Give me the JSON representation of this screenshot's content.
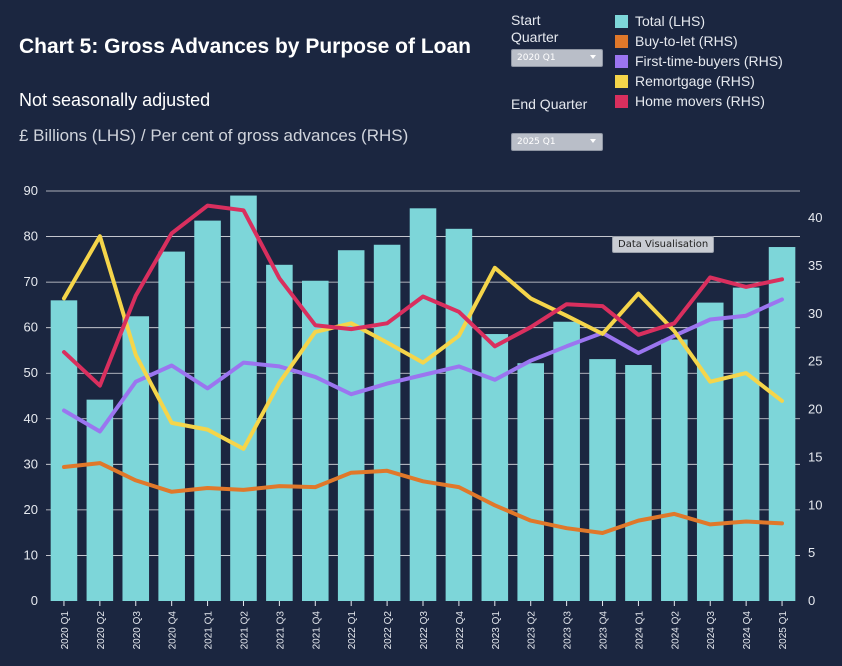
{
  "title": "Chart 5: Gross Advances by Purpose of Loan",
  "subtitle": "Not seasonally adjusted",
  "units": "£ Billions (LHS) / Per cent of gross advances (RHS)",
  "controls": {
    "start_label": "Start Quarter",
    "start_value": "2020 Q1",
    "end_label": "End Quarter",
    "end_value": "2025 Q1"
  },
  "tooltip": "Data Visualisation",
  "colors": {
    "background": "#1b2640",
    "total": "#7dd6d9",
    "buy_to_let": "#e0782a",
    "first_time_buyers": "#9b75f0",
    "remortgage": "#f5d54a",
    "home_movers": "#d92f5e",
    "grid": "#ffffff"
  },
  "chart_data": {
    "type": "bar",
    "categories": [
      "2020 Q1",
      "2020 Q2",
      "2020 Q3",
      "2020 Q4",
      "2021 Q1",
      "2021 Q2",
      "2021 Q3",
      "2021 Q4",
      "2022 Q1",
      "2022 Q2",
      "2022 Q3",
      "2022 Q4",
      "2023 Q1",
      "2023 Q2",
      "2023 Q3",
      "2023 Q4",
      "2024 Q1",
      "2024 Q2",
      "2024 Q3",
      "2024 Q4",
      "2025 Q1"
    ],
    "y_left": {
      "ylim": [
        0,
        90
      ],
      "ticks": [
        0,
        10,
        20,
        30,
        40,
        50,
        60,
        70,
        80,
        90
      ]
    },
    "y_right": {
      "ylim": [
        0,
        43
      ],
      "ticks": [
        0,
        5,
        10,
        15,
        20,
        25,
        30,
        35,
        40
      ]
    },
    "legend_position": "top-right",
    "grid": true,
    "series": [
      {
        "name": "Total (LHS)",
        "type": "bar",
        "axis": "left",
        "color": "#7dd6d9",
        "values": [
          66,
          44.2,
          62.5,
          76.7,
          83.5,
          89,
          73.8,
          70.3,
          77,
          78.2,
          86.2,
          81.7,
          58.6,
          52.2,
          61.3,
          53.1,
          51.8,
          57.4,
          65.5,
          68.8,
          77.7
        ]
      },
      {
        "name": "Buy-to-let (RHS)",
        "type": "line",
        "axis": "right",
        "color": "#e0782a",
        "values": [
          14,
          14.4,
          12.6,
          11.4,
          11.8,
          11.6,
          12,
          11.9,
          13.4,
          13.6,
          12.5,
          11.9,
          10,
          8.4,
          7.6,
          7.1,
          8.4,
          9.1,
          8,
          8.3,
          8.1
        ]
      },
      {
        "name": "First-time-buyers (RHS)",
        "type": "line",
        "axis": "right",
        "color": "#9b75f0",
        "values": [
          19.9,
          17.7,
          22.9,
          24.6,
          22.2,
          24.9,
          24.5,
          23.4,
          21.6,
          22.7,
          23.6,
          24.5,
          23.1,
          25.1,
          26.6,
          28,
          25.9,
          27.7,
          29.4,
          29.8,
          31.5
        ]
      },
      {
        "name": "Remortgage (RHS)",
        "type": "line",
        "axis": "right",
        "color": "#f5d54a",
        "values": [
          31.6,
          38.1,
          25.7,
          18.6,
          17.9,
          15.9,
          22.8,
          28.1,
          29,
          27,
          24.9,
          27.7,
          34.8,
          31.6,
          29.8,
          27.9,
          32.1,
          28.2,
          22.9,
          23.8,
          20.9
        ]
      },
      {
        "name": "Home movers (RHS)",
        "type": "line",
        "axis": "right",
        "color": "#d92f5e",
        "values": [
          26,
          22.5,
          31.9,
          38.4,
          41.3,
          40.8,
          33.7,
          28.8,
          28.4,
          29,
          31.8,
          30.2,
          26.6,
          28.6,
          31,
          30.8,
          27.8,
          29,
          33.8,
          32.8,
          33.6
        ]
      }
    ]
  }
}
